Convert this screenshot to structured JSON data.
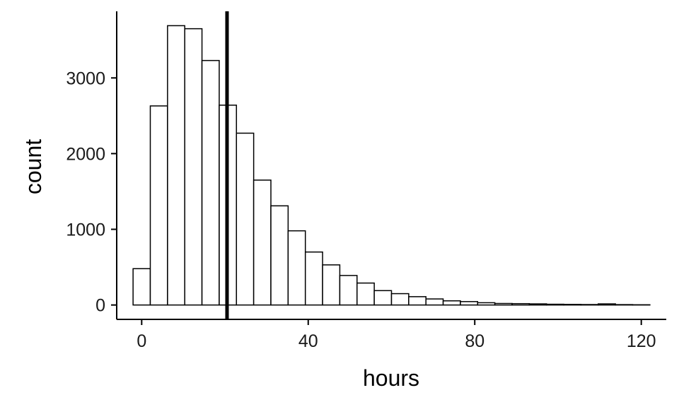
{
  "chart_data": {
    "type": "bar",
    "subtype": "histogram",
    "xlabel": "hours",
    "ylabel": "count",
    "xlim": [
      -6,
      126
    ],
    "ylim": [
      -190,
      3880
    ],
    "x_ticks": [
      0,
      40,
      80,
      120
    ],
    "y_ticks": [
      0,
      1000,
      2000,
      3000
    ],
    "bin_width": 4.138,
    "bins": [
      {
        "x": 0.0,
        "count": 480
      },
      {
        "x": 4.138,
        "count": 2630
      },
      {
        "x": 8.276,
        "count": 3690
      },
      {
        "x": 12.414,
        "count": 3650
      },
      {
        "x": 16.552,
        "count": 3230
      },
      {
        "x": 20.69,
        "count": 2640
      },
      {
        "x": 24.828,
        "count": 2270
      },
      {
        "x": 28.966,
        "count": 1650
      },
      {
        "x": 33.103,
        "count": 1310
      },
      {
        "x": 37.241,
        "count": 980
      },
      {
        "x": 41.379,
        "count": 700
      },
      {
        "x": 45.517,
        "count": 530
      },
      {
        "x": 49.655,
        "count": 390
      },
      {
        "x": 53.793,
        "count": 290
      },
      {
        "x": 57.931,
        "count": 190
      },
      {
        "x": 62.069,
        "count": 150
      },
      {
        "x": 66.207,
        "count": 110
      },
      {
        "x": 70.345,
        "count": 80
      },
      {
        "x": 74.483,
        "count": 55
      },
      {
        "x": 78.621,
        "count": 45
      },
      {
        "x": 82.759,
        "count": 30
      },
      {
        "x": 86.897,
        "count": 20
      },
      {
        "x": 91.034,
        "count": 18
      },
      {
        "x": 95.172,
        "count": 15
      },
      {
        "x": 99.31,
        "count": 10
      },
      {
        "x": 103.448,
        "count": 8
      },
      {
        "x": 107.586,
        "count": 6
      },
      {
        "x": 111.724,
        "count": 15
      },
      {
        "x": 115.862,
        "count": 5
      },
      {
        "x": 120.0,
        "count": 3
      }
    ],
    "vertical_line_x": 20.5,
    "grid": false,
    "legend": "none",
    "bar_fill": "#ffffff",
    "bar_outline": "#000000"
  }
}
